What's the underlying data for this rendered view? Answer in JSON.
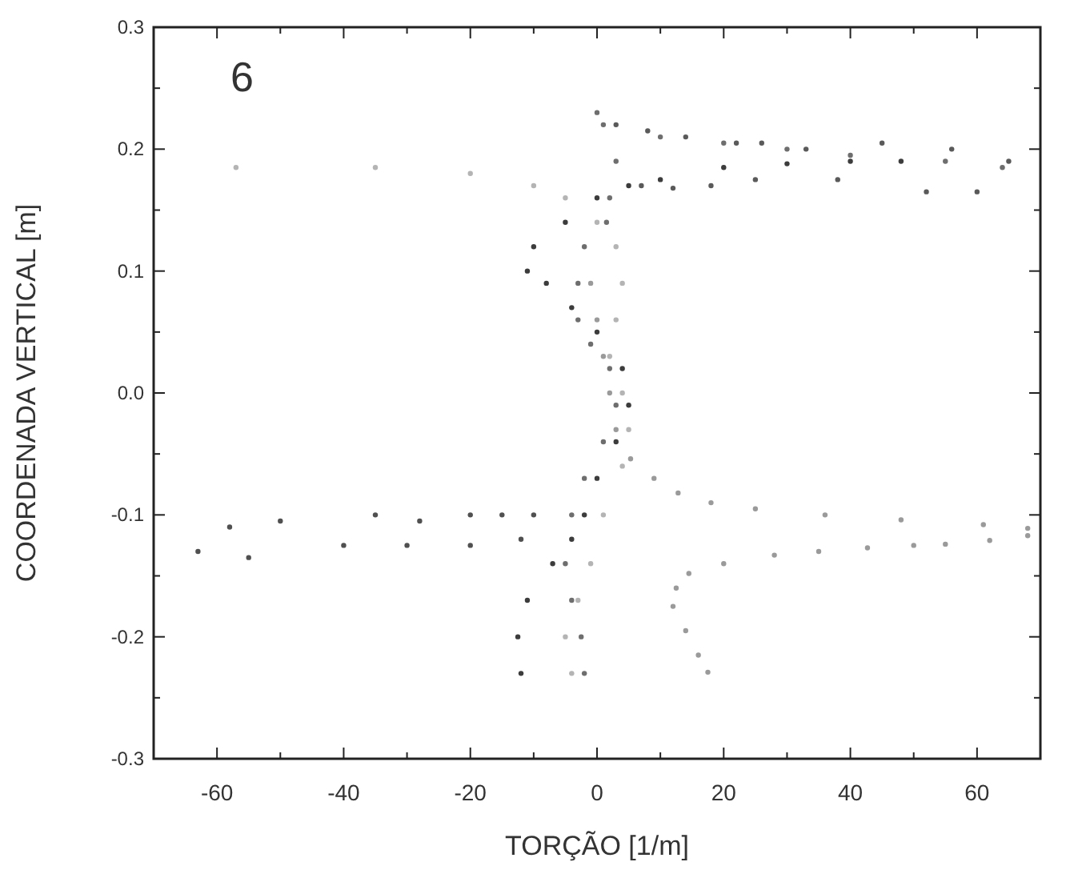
{
  "chart_data": {
    "type": "scatter",
    "xlabel": "TORÇÃO [1/m]",
    "ylabel": "COORDENADA VERTICAL [m]",
    "annotations": [
      "6"
    ],
    "marker": "circle",
    "grid": false,
    "xlim": [
      -70,
      70
    ],
    "ylim": [
      -0.3,
      0.3
    ],
    "xticks": [
      -60,
      {
        "value": -50,
        "label": null
      },
      -40,
      {
        "value": -30,
        "label": null
      },
      -20,
      {
        "value": -10,
        "label": null
      },
      0,
      {
        "value": 10,
        "label": null
      },
      20,
      {
        "value": 30,
        "label": null
      },
      40,
      {
        "value": 50,
        "label": null
      },
      60
    ],
    "yticks": [
      {
        "value": -0.3,
        "label": "-0.3"
      },
      {
        "value": -0.25,
        "label": null
      },
      {
        "value": -0.2,
        "label": "-0.2"
      },
      {
        "value": -0.15,
        "label": null
      },
      {
        "value": -0.1,
        "label": "-0.1"
      },
      {
        "value": -0.05,
        "label": null
      },
      {
        "value": 0,
        "label": "0.0"
      },
      {
        "value": 0.05,
        "label": null
      },
      {
        "value": 0.1,
        "label": "0.1"
      },
      {
        "value": 0.15,
        "label": null
      },
      {
        "value": 0.2,
        "label": "0.2"
      },
      {
        "value": 0.25,
        "label": null
      },
      {
        "value": 0.3,
        "label": "0.3"
      }
    ],
    "series": [
      {
        "color": "#9a9a9a",
        "x": [
          17.5,
          16,
          14,
          12,
          12.5,
          14.5,
          20,
          28,
          35,
          42.7,
          50,
          55,
          62,
          68,
          68,
          61,
          48,
          36,
          25,
          18,
          12.8,
          9,
          5.3,
          3,
          2,
          1,
          0,
          -1
        ],
        "values": [
          -0.229,
          -0.215,
          -0.195,
          -0.175,
          -0.16,
          -0.148,
          -0.14,
          -0.133,
          -0.13,
          -0.127,
          -0.125,
          -0.124,
          -0.121,
          -0.117,
          -0.111,
          -0.108,
          -0.104,
          -0.1,
          -0.095,
          -0.09,
          -0.082,
          -0.07,
          -0.054,
          -0.03,
          0,
          0.03,
          0.06,
          0.09
        ]
      },
      {
        "color": "#3c3c3c",
        "x": [
          -12,
          -12.5,
          -11,
          -7,
          -4,
          -2,
          0,
          3,
          5,
          4,
          0,
          -4,
          -8,
          -11,
          -10,
          -5,
          0,
          5,
          10,
          20,
          30,
          40,
          48
        ],
        "values": [
          -0.23,
          -0.2,
          -0.17,
          -0.14,
          -0.12,
          -0.1,
          -0.07,
          -0.04,
          -0.01,
          0.02,
          0.05,
          0.07,
          0.09,
          0.1,
          0.12,
          0.14,
          0.16,
          0.17,
          0.175,
          0.185,
          0.188,
          0.19,
          0.19
        ]
      },
      {
        "color": "#6e6e6e",
        "x": [
          -2,
          -2.5,
          -4,
          -5,
          -4,
          -2,
          1,
          3,
          2,
          -1,
          -3,
          -3,
          -2,
          1.5,
          2,
          3,
          1,
          0,
          10,
          20,
          30,
          40,
          55,
          64
        ],
        "values": [
          -0.23,
          -0.2,
          -0.17,
          -0.14,
          -0.1,
          -0.07,
          -0.04,
          -0.01,
          0.02,
          0.04,
          0.06,
          0.09,
          0.12,
          0.14,
          0.16,
          0.19,
          0.22,
          0.23,
          0.21,
          0.205,
          0.2,
          0.195,
          0.19,
          0.185
        ]
      },
      {
        "color": "#b4b4b4",
        "x": [
          -4,
          -5,
          -3,
          -1,
          1,
          4,
          5,
          4,
          2,
          3,
          4,
          3,
          0,
          -5,
          -10,
          -20,
          -35,
          -57
        ],
        "values": [
          -0.23,
          -0.2,
          -0.17,
          -0.14,
          -0.1,
          -0.06,
          -0.03,
          0,
          0.03,
          0.06,
          0.09,
          0.12,
          0.14,
          0.16,
          0.17,
          0.18,
          0.185,
          0.185
        ]
      },
      {
        "color": "#505050",
        "x": [
          -10,
          -15,
          -20,
          -28,
          -35,
          -50,
          -58,
          -12,
          -20,
          -30,
          -40,
          -55,
          -63
        ],
        "values": [
          -0.1,
          -0.1,
          -0.1,
          -0.105,
          -0.1,
          -0.105,
          -0.11,
          -0.12,
          -0.125,
          -0.125,
          -0.125,
          -0.135,
          -0.13
        ]
      },
      {
        "color": "#5a5a5a",
        "x": [
          3,
          8,
          14,
          22,
          26,
          33,
          45,
          56,
          65,
          7,
          12,
          18,
          25,
          38,
          52,
          60
        ],
        "values": [
          0.22,
          0.215,
          0.21,
          0.205,
          0.205,
          0.2,
          0.205,
          0.2,
          0.19,
          0.17,
          0.168,
          0.17,
          0.175,
          0.175,
          0.165,
          0.165
        ]
      }
    ]
  }
}
